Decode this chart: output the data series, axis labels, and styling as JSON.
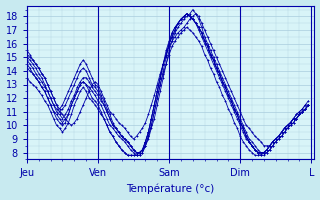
{
  "xlabel": "Température (°c)",
  "bg_color": "#c8eaf0",
  "plot_bg_color": "#d8f4f8",
  "line_color": "#0000aa",
  "grid_color": "#aaccdd",
  "xtick_labels": [
    "Jeu",
    "Ven",
    "Sam",
    "Dim",
    "L"
  ],
  "xtick_positions": [
    0,
    24,
    48,
    72,
    96
  ],
  "ytick_labels": [
    "8",
    "9",
    "10",
    "11",
    "12",
    "13",
    "14",
    "15",
    "16",
    "17",
    "18"
  ],
  "ytick_positions": [
    8,
    9,
    10,
    11,
    12,
    13,
    14,
    15,
    16,
    17,
    18
  ],
  "ylim": [
    7.5,
    18.8
  ],
  "xlim": [
    0,
    97
  ],
  "series": [
    [
      15.5,
      15.2,
      14.8,
      14.5,
      14.2,
      13.8,
      13.5,
      13.0,
      12.5,
      12.0,
      11.5,
      11.0,
      10.8,
      10.5,
      10.2,
      10.0,
      10.2,
      10.5,
      11.0,
      11.5,
      12.0,
      12.5,
      13.0,
      13.2,
      13.0,
      12.5,
      12.0,
      11.5,
      11.0,
      10.8,
      10.5,
      10.2,
      10.0,
      9.8,
      9.5,
      9.2,
      9.0,
      9.2,
      9.5,
      9.8,
      10.2,
      10.8,
      11.5,
      12.2,
      13.0,
      13.8,
      14.5,
      15.2,
      15.8,
      16.2,
      16.5,
      16.8,
      17.0,
      17.2,
      17.5,
      17.8,
      18.0,
      18.2,
      18.0,
      17.5,
      17.0,
      16.5,
      16.0,
      15.5,
      15.0,
      14.5,
      14.0,
      13.5,
      13.0,
      12.5,
      12.0,
      11.5,
      11.0,
      10.5,
      10.0,
      9.8,
      9.5,
      9.2,
      9.0,
      8.8,
      8.5,
      8.5,
      8.5,
      8.8,
      9.0,
      9.2,
      9.5,
      9.8,
      10.0,
      10.2,
      10.5,
      10.8,
      11.0,
      11.2,
      11.5,
      11.5
    ],
    [
      14.8,
      14.5,
      14.2,
      13.8,
      13.5,
      13.2,
      12.8,
      12.5,
      12.0,
      11.5,
      11.0,
      10.8,
      10.5,
      10.8,
      11.2,
      11.8,
      12.2,
      12.8,
      13.2,
      13.5,
      13.5,
      13.2,
      12.8,
      12.5,
      12.2,
      11.8,
      11.5,
      11.0,
      10.5,
      10.0,
      9.8,
      9.5,
      9.2,
      9.0,
      8.8,
      8.5,
      8.2,
      8.0,
      8.0,
      8.2,
      8.5,
      9.0,
      9.8,
      10.5,
      11.5,
      12.5,
      13.5,
      14.5,
      15.5,
      16.2,
      16.8,
      17.2,
      17.5,
      17.8,
      18.0,
      18.2,
      18.5,
      18.2,
      17.8,
      17.2,
      16.5,
      16.0,
      15.5,
      15.0,
      14.5,
      14.0,
      13.5,
      13.0,
      12.5,
      12.0,
      11.5,
      11.0,
      10.5,
      10.0,
      9.5,
      9.0,
      8.8,
      8.5,
      8.2,
      8.0,
      8.0,
      8.0,
      8.2,
      8.5,
      8.8,
      9.0,
      9.2,
      9.5,
      9.8,
      10.0,
      10.2,
      10.5,
      10.8,
      11.0,
      11.2,
      11.5
    ],
    [
      14.5,
      14.2,
      13.8,
      13.5,
      13.2,
      12.8,
      12.5,
      12.0,
      11.5,
      11.0,
      10.8,
      10.5,
      10.2,
      10.5,
      10.8,
      11.5,
      12.0,
      12.5,
      13.0,
      13.2,
      13.0,
      12.8,
      12.5,
      12.2,
      11.8,
      11.5,
      11.0,
      10.5,
      10.0,
      9.8,
      9.5,
      9.2,
      9.0,
      8.8,
      8.5,
      8.2,
      8.0,
      7.8,
      7.8,
      8.0,
      8.5,
      9.2,
      10.0,
      11.0,
      12.0,
      13.0,
      14.0,
      15.0,
      16.0,
      16.8,
      17.2,
      17.5,
      17.8,
      18.0,
      18.2,
      18.0,
      17.8,
      17.5,
      17.0,
      16.5,
      16.0,
      15.5,
      15.0,
      14.5,
      14.0,
      13.5,
      13.0,
      12.5,
      12.0,
      11.5,
      11.0,
      10.5,
      10.0,
      9.5,
      9.0,
      8.8,
      8.5,
      8.2,
      8.0,
      8.0,
      8.0,
      8.2,
      8.5,
      8.8,
      9.0,
      9.2,
      9.5,
      9.8,
      10.0,
      10.2,
      10.5,
      10.5,
      10.8,
      11.0,
      11.2,
      11.5
    ],
    [
      15.0,
      14.8,
      14.5,
      14.2,
      13.8,
      13.5,
      13.0,
      12.5,
      12.0,
      11.5,
      11.2,
      11.0,
      11.2,
      11.5,
      12.0,
      12.5,
      13.0,
      13.5,
      14.0,
      14.2,
      14.0,
      13.5,
      13.0,
      12.8,
      12.5,
      12.0,
      11.5,
      11.0,
      10.5,
      10.0,
      9.8,
      9.5,
      9.2,
      9.0,
      8.8,
      8.5,
      8.2,
      8.0,
      8.0,
      8.2,
      8.8,
      9.5,
      10.5,
      11.5,
      12.5,
      13.5,
      14.5,
      15.5,
      16.2,
      16.8,
      17.2,
      17.5,
      17.8,
      18.0,
      18.2,
      18.0,
      17.8,
      17.5,
      17.2,
      16.8,
      16.2,
      15.8,
      15.2,
      14.8,
      14.2,
      13.8,
      13.2,
      12.8,
      12.2,
      11.8,
      11.2,
      10.8,
      10.2,
      9.8,
      9.2,
      8.8,
      8.5,
      8.2,
      8.0,
      8.0,
      8.0,
      8.2,
      8.5,
      8.8,
      9.0,
      9.2,
      9.5,
      9.8,
      10.0,
      10.2,
      10.5,
      10.5,
      10.8,
      11.0,
      11.2,
      11.5
    ],
    [
      15.2,
      15.0,
      14.8,
      14.5,
      14.2,
      13.8,
      13.5,
      13.0,
      12.5,
      12.0,
      11.5,
      11.2,
      11.5,
      12.0,
      12.5,
      13.0,
      13.5,
      14.0,
      14.5,
      14.8,
      14.5,
      14.0,
      13.5,
      13.0,
      12.8,
      12.2,
      11.8,
      11.2,
      10.8,
      10.2,
      9.8,
      9.5,
      9.2,
      9.0,
      8.8,
      8.5,
      8.2,
      8.0,
      8.0,
      8.2,
      8.8,
      9.5,
      10.5,
      11.5,
      12.5,
      13.5,
      14.5,
      15.2,
      16.0,
      16.5,
      17.0,
      17.5,
      17.8,
      18.0,
      18.2,
      18.0,
      17.8,
      17.5,
      17.2,
      16.8,
      16.2,
      15.8,
      15.2,
      14.8,
      14.2,
      13.8,
      13.2,
      12.8,
      12.2,
      11.8,
      11.2,
      10.8,
      10.2,
      9.8,
      9.2,
      8.8,
      8.5,
      8.2,
      8.0,
      8.0,
      8.0,
      8.2,
      8.5,
      8.8,
      9.0,
      9.2,
      9.5,
      9.8,
      10.0,
      10.2,
      10.5,
      10.8,
      11.0,
      11.2,
      11.5,
      11.8
    ],
    [
      13.5,
      13.2,
      13.0,
      12.8,
      12.5,
      12.2,
      11.8,
      11.5,
      11.0,
      10.5,
      10.0,
      9.8,
      9.5,
      9.8,
      10.2,
      10.8,
      11.5,
      12.0,
      12.5,
      12.8,
      12.5,
      12.0,
      11.8,
      11.5,
      11.2,
      10.8,
      10.5,
      10.0,
      9.5,
      9.2,
      8.8,
      8.5,
      8.2,
      8.0,
      7.8,
      7.8,
      7.8,
      7.8,
      7.8,
      8.0,
      8.5,
      9.2,
      10.0,
      11.0,
      12.0,
      13.0,
      13.8,
      14.5,
      15.2,
      15.8,
      16.2,
      16.5,
      16.8,
      17.0,
      17.2,
      17.0,
      16.8,
      16.5,
      16.2,
      15.8,
      15.2,
      14.8,
      14.2,
      13.8,
      13.2,
      12.8,
      12.2,
      11.8,
      11.2,
      10.8,
      10.2,
      9.8,
      9.2,
      8.8,
      8.5,
      8.2,
      8.0,
      7.8,
      7.8,
      7.8,
      8.0,
      8.2,
      8.5,
      8.8,
      9.0,
      9.2,
      9.5,
      9.8,
      10.0,
      10.2,
      10.5,
      10.5,
      10.8,
      11.0,
      11.2,
      11.5
    ],
    [
      14.2,
      14.0,
      13.8,
      13.5,
      13.2,
      12.8,
      12.5,
      12.0,
      11.5,
      11.0,
      10.5,
      10.2,
      10.0,
      10.2,
      10.8,
      11.5,
      12.0,
      12.5,
      13.0,
      13.2,
      13.0,
      12.5,
      12.0,
      11.8,
      11.5,
      11.0,
      10.5,
      10.0,
      9.5,
      9.2,
      8.8,
      8.5,
      8.2,
      8.0,
      7.8,
      7.8,
      7.8,
      7.8,
      8.0,
      8.2,
      8.8,
      9.5,
      10.5,
      11.5,
      12.5,
      13.5,
      14.5,
      15.2,
      16.0,
      16.5,
      17.0,
      17.5,
      17.8,
      18.0,
      18.2,
      18.0,
      17.8,
      17.5,
      17.2,
      16.8,
      16.2,
      15.8,
      15.2,
      14.8,
      14.2,
      13.8,
      13.2,
      12.8,
      12.2,
      11.8,
      11.2,
      10.8,
      10.2,
      9.8,
      9.2,
      8.8,
      8.5,
      8.2,
      8.0,
      7.8,
      7.8,
      8.0,
      8.2,
      8.5,
      8.8,
      9.0,
      9.2,
      9.5,
      9.8,
      10.0,
      10.2,
      10.5,
      10.8,
      11.0,
      11.2,
      11.5
    ]
  ]
}
